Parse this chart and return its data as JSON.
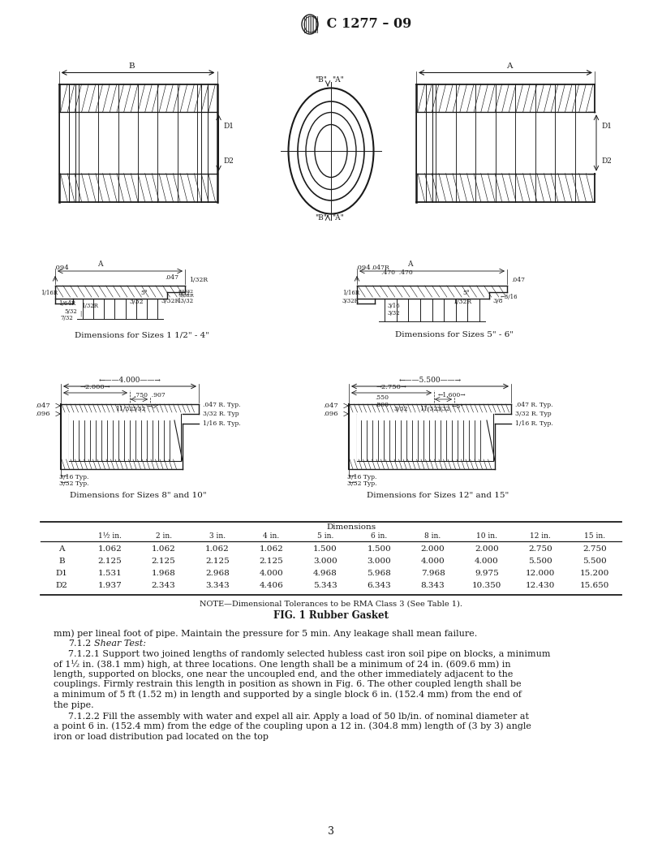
{
  "title": "C 1277 – 09",
  "page_number": "3",
  "bg": "#ffffff",
  "tc": "#1a1a1a",
  "table_columns": [
    "",
    "1½ in.",
    "2 in.",
    "3 in.",
    "4 in.",
    "5 in.",
    "6 in.",
    "8 in.",
    "10 in.",
    "12 in.",
    "15 in."
  ],
  "table_rows": [
    [
      "A",
      "1.062",
      "1.062",
      "1.062",
      "1.062",
      "1.500",
      "1.500",
      "2.000",
      "2.000",
      "2.750",
      "2.750"
    ],
    [
      "B",
      "2.125",
      "2.125",
      "2.125",
      "2.125",
      "3.000",
      "3.000",
      "4.000",
      "4.000",
      "5.500",
      "5.500"
    ],
    [
      "D1",
      "1.531",
      "1.968",
      "2.968",
      "4.000",
      "4.968",
      "5.968",
      "7.968",
      "9.975",
      "12.000",
      "15.200"
    ],
    [
      "D2",
      "1.937",
      "2.343",
      "3.343",
      "4.406",
      "5.343",
      "6.343",
      "8.343",
      "10.350",
      "12.430",
      "15.650"
    ]
  ],
  "table_note": "NOTE—Dimensional Tolerances to be RMA Class 3 (See Table 1).",
  "fig_caption": "FIG. 1 Rubber Gasket",
  "body_lines": [
    {
      "indent": 0,
      "text": "mm) per lineal foot of pipe. Maintain the pressure for 5 min. Any leakage shall mean failure.",
      "italic": false
    },
    {
      "indent": 1,
      "text": "7.1.2",
      "italic": false,
      "suffix_italic": "Shear Test:"
    },
    {
      "indent": 2,
      "text": "7.1.2.1  Support two joined lengths of randomly selected hubless cast iron soil pipe on blocks, a minimum of 1½ in. (38.1 mm) high, at three locations. One length shall be a minimum of 24 in. (609.6 mm) in length, supported on blocks, one near the uncoupled end, and the other immediately adjacent to the couplings. Firmly restrain this length in position as shown in Fig. 6. The other coupled length shall be a minimum of 5 ft (1.52 m) in length and supported by a single block 6 in. (152.4 mm) from the end of the pipe.",
      "italic": false
    },
    {
      "indent": 2,
      "text": "7.1.2.2  Fill the assembly with water and expel all air. Apply a load of 50 lb/in. of nominal diameter at a point 6 in. (152.4 mm) from the edge of the coupling upon a 12 in. (304.8 mm) length of (3 by 3) angle iron or load distribution pad located on the top",
      "italic": false
    }
  ]
}
